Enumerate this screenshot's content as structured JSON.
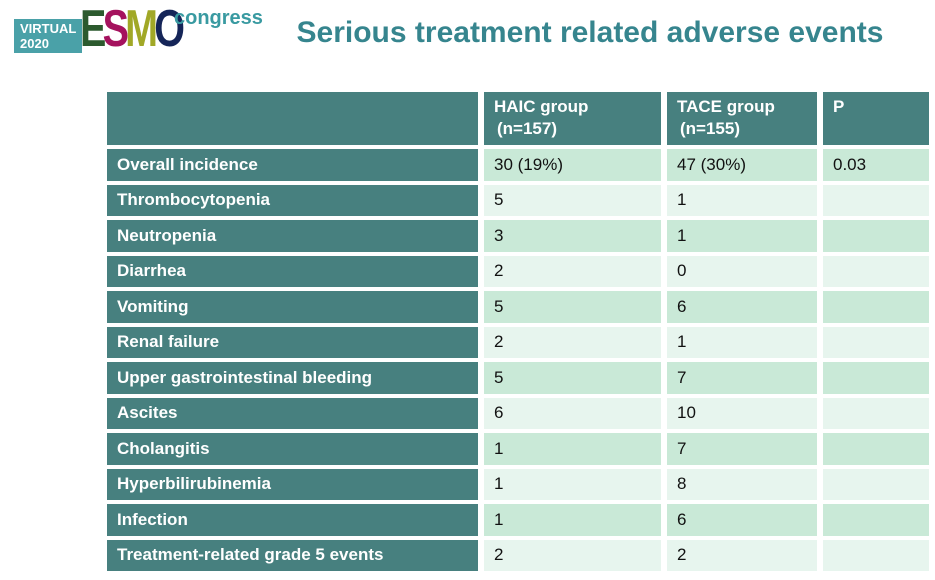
{
  "logo": {
    "virtual_line1": "VIRTUAL",
    "virtual_line2": "2020",
    "esmo_letters": [
      {
        "char": "E",
        "color": "#2c5a2e"
      },
      {
        "char": "S",
        "color": "#a5125e"
      },
      {
        "char": "M",
        "color": "#a1a827"
      },
      {
        "char": "O",
        "color": "#152558"
      }
    ],
    "congress": "congress"
  },
  "title": "Serious treatment related adverse events",
  "colors": {
    "teal_cell": "#47807f",
    "row_dark": "#c9e9d7",
    "row_light": "#e7f5ee",
    "title_teal": "#36858e",
    "logo_box_teal": "#4aa1a8",
    "congress_teal": "#399aa1"
  },
  "table": {
    "columns": [
      {
        "label": "",
        "sublabel": ""
      },
      {
        "label": "HAIC group",
        "sublabel": "(n=157)"
      },
      {
        "label": "TACE group",
        "sublabel": "(n=155)"
      },
      {
        "label": "P",
        "sublabel": ""
      }
    ],
    "rows": [
      {
        "label": "Overall incidence",
        "haic": "30 (19%)",
        "tace": "47 (30%)",
        "p": "0.03"
      },
      {
        "label": "Thrombocytopenia",
        "haic": "5",
        "tace": "1",
        "p": ""
      },
      {
        "label": "Neutropenia",
        "haic": "3",
        "tace": "1",
        "p": ""
      },
      {
        "label": "Diarrhea",
        "haic": "2",
        "tace": "0",
        "p": ""
      },
      {
        "label": "Vomiting",
        "haic": "5",
        "tace": "6",
        "p": ""
      },
      {
        "label": "Renal failure",
        "haic": "2",
        "tace": "1",
        "p": ""
      },
      {
        "label": "Upper gastrointestinal bleeding",
        "haic": "5",
        "tace": "7",
        "p": ""
      },
      {
        "label": "Ascites",
        "haic": "6",
        "tace": "10",
        "p": ""
      },
      {
        "label": "Cholangitis",
        "haic": "1",
        "tace": "7",
        "p": ""
      },
      {
        "label": "Hyperbilirubinemia",
        "haic": "1",
        "tace": "8",
        "p": ""
      },
      {
        "label": "Infection",
        "haic": "1",
        "tace": "6",
        "p": ""
      },
      {
        "label": "Treatment-related grade 5 events",
        "haic": "2",
        "tace": "2",
        "p": ""
      }
    ]
  }
}
